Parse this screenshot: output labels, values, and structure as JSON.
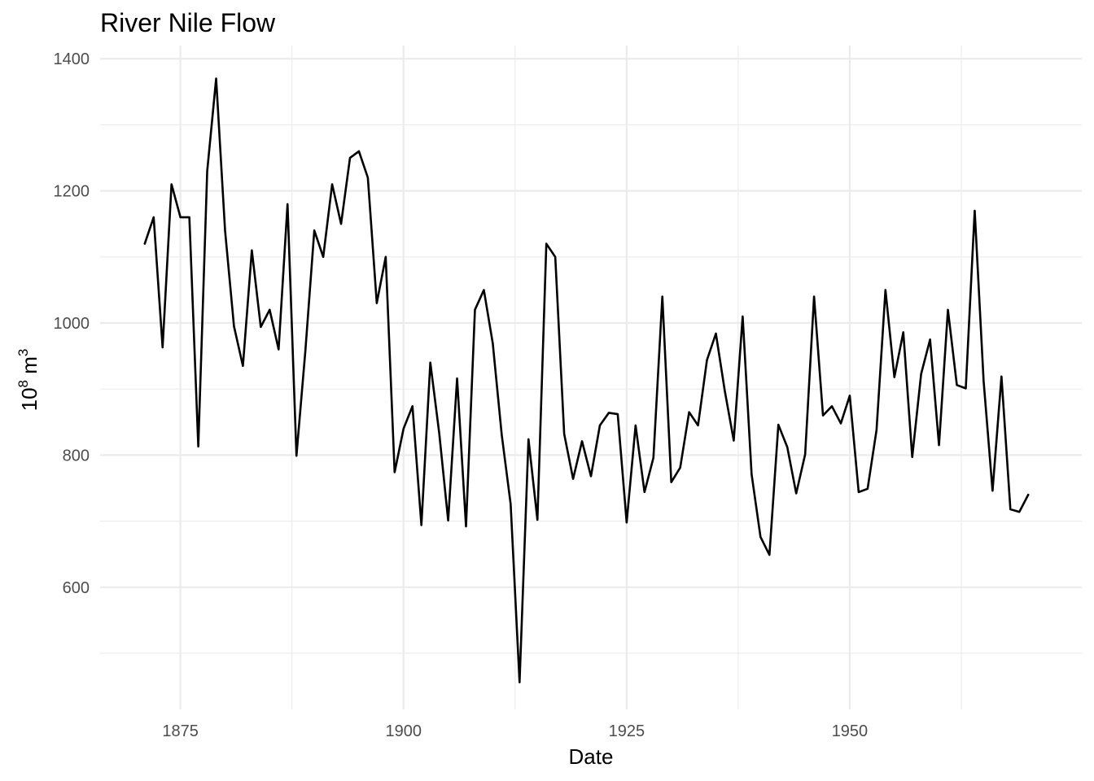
{
  "chart_data": {
    "type": "line",
    "title": "River Nile Flow",
    "xlabel": "Date",
    "ylabel_base": "10",
    "ylabel_exp1": "8",
    "ylabel_mid": " m",
    "ylabel_exp2": "3",
    "xlim": [
      1866,
      1976
    ],
    "ylim": [
      415,
      1420
    ],
    "x_ticks": [
      1875,
      1900,
      1925,
      1950
    ],
    "x_tick_labels": [
      "1875",
      "1900",
      "1925",
      "1950"
    ],
    "x_minor_ticks": [
      1862.5,
      1887.5,
      1912.5,
      1937.5,
      1962.5
    ],
    "y_ticks": [
      600,
      800,
      1000,
      1200,
      1400
    ],
    "y_tick_labels": [
      "600",
      "800",
      "1000",
      "1200",
      "1400"
    ],
    "y_minor_ticks": [
      500,
      700,
      900,
      1100,
      1300
    ],
    "grid": true,
    "series": [
      {
        "color": "#000000",
        "x": [
          1871,
          1872,
          1873,
          1874,
          1875,
          1876,
          1877,
          1878,
          1879,
          1880,
          1881,
          1882,
          1883,
          1884,
          1885,
          1886,
          1887,
          1888,
          1889,
          1890,
          1891,
          1892,
          1893,
          1894,
          1895,
          1896,
          1897,
          1898,
          1899,
          1900,
          1901,
          1902,
          1903,
          1904,
          1905,
          1906,
          1907,
          1908,
          1909,
          1910,
          1911,
          1912,
          1913,
          1914,
          1915,
          1916,
          1917,
          1918,
          1919,
          1920,
          1921,
          1922,
          1923,
          1924,
          1925,
          1926,
          1927,
          1928,
          1929,
          1930,
          1931,
          1932,
          1933,
          1934,
          1935,
          1936,
          1937,
          1938,
          1939,
          1940,
          1941,
          1942,
          1943,
          1944,
          1945,
          1946,
          1947,
          1948,
          1949,
          1950,
          1951,
          1952,
          1953,
          1954,
          1955,
          1956,
          1957,
          1958,
          1959,
          1960,
          1961,
          1962,
          1963,
          1964,
          1965,
          1966,
          1967,
          1968,
          1969,
          1970
        ],
        "y": [
          1120,
          1160,
          963,
          1210,
          1160,
          1160,
          813,
          1230,
          1370,
          1140,
          995,
          935,
          1110,
          994,
          1020,
          960,
          1180,
          799,
          958,
          1140,
          1100,
          1210,
          1150,
          1250,
          1260,
          1220,
          1030,
          1100,
          774,
          840,
          874,
          694,
          940,
          833,
          701,
          916,
          692,
          1020,
          1050,
          969,
          831,
          726,
          456,
          824,
          702,
          1120,
          1100,
          832,
          764,
          821,
          768,
          845,
          864,
          862,
          698,
          845,
          744,
          796,
          1040,
          759,
          781,
          865,
          845,
          944,
          984,
          897,
          822,
          1010,
          771,
          676,
          649,
          846,
          812,
          742,
          801,
          1040,
          860,
          874,
          848,
          890,
          744,
          749,
          838,
          1050,
          918,
          986,
          797,
          923,
          975,
          815,
          1020,
          906,
          901,
          1170,
          912,
          746,
          919,
          718,
          714,
          740
        ]
      }
    ]
  }
}
